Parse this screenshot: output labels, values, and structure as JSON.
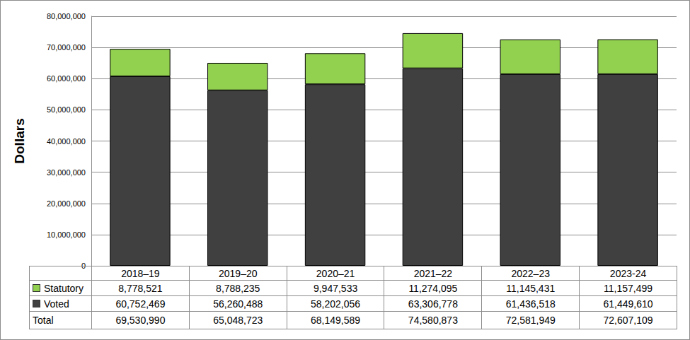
{
  "chart_data": {
    "type": "bar",
    "stacked": true,
    "grid": true,
    "ylabel": "Dollars",
    "categories": [
      "2018–19",
      "2019–20",
      "2020–21",
      "2021–22",
      "2022–23",
      "2023-24"
    ],
    "series": [
      {
        "name": "Statutory",
        "color": "#92d050",
        "values": [
          8778521,
          8788235,
          9947533,
          11274095,
          11145431,
          11157499
        ],
        "value_labels": [
          "8,778,521",
          "8,788,235",
          "9,947,533",
          "11,274,095",
          "11,145,431",
          "11,157,499"
        ]
      },
      {
        "name": "Voted",
        "color": "#404040",
        "values": [
          60752469,
          56260488,
          58202056,
          63306778,
          61436518,
          61449610
        ],
        "value_labels": [
          "60,752,469",
          "56,260,488",
          "58,202,056",
          "63,306,778",
          "61,436,518",
          "61,449,610"
        ]
      }
    ],
    "totals": {
      "name": "Total",
      "values": [
        69530990,
        65048723,
        68149589,
        74580873,
        72581949,
        72607109
      ],
      "value_labels": [
        "69,530,990",
        "65,048,723",
        "68,149,589",
        "74,580,873",
        "72,581,949",
        "72,607,109"
      ]
    },
    "ylim": [
      0,
      80000000
    ],
    "yticks": [
      0,
      {
        "value": 10000000,
        "label": "10,000,000"
      },
      {
        "value": 20000000,
        "label": "20,000,000"
      },
      {
        "value": 30000000,
        "label": "30,000,000"
      },
      {
        "value": 40000000,
        "label": "40,000,000"
      },
      {
        "value": 50000000,
        "label": "50,000,000"
      },
      {
        "value": 60000000,
        "label": "60,000,000"
      },
      {
        "value": 70000000,
        "label": "70,000,000"
      },
      {
        "value": 80000000,
        "label": "80,000,000"
      }
    ]
  }
}
